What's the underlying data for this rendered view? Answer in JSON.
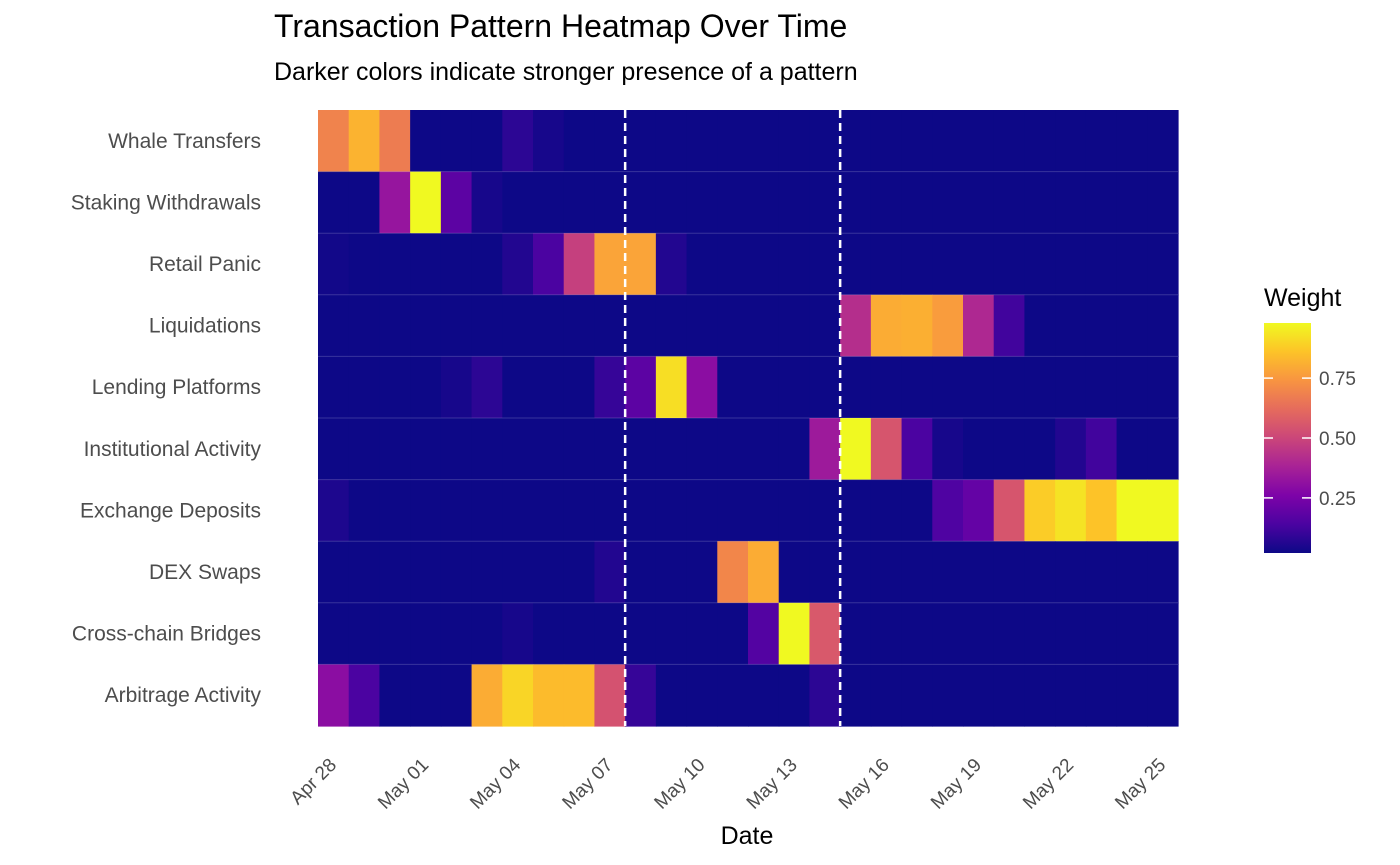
{
  "chart_data": {
    "type": "heatmap",
    "title": "Transaction Pattern Heatmap Over Time",
    "subtitle": "Darker colors indicate stronger presence of a pattern",
    "xlabel": "Date",
    "ylabel": "",
    "x_dates": [
      "2024-04-28",
      "2024-04-29",
      "2024-04-30",
      "2024-05-01",
      "2024-05-02",
      "2024-05-03",
      "2024-05-04",
      "2024-05-05",
      "2024-05-06",
      "2024-05-07",
      "2024-05-08",
      "2024-05-09",
      "2024-05-10",
      "2024-05-11",
      "2024-05-12",
      "2024-05-13",
      "2024-05-14",
      "2024-05-15",
      "2024-05-16",
      "2024-05-17",
      "2024-05-18",
      "2024-05-19",
      "2024-05-20",
      "2024-05-21",
      "2024-05-22",
      "2024-05-23",
      "2024-05-24",
      "2024-05-25"
    ],
    "x_ticks": [
      "Apr 28",
      "May 01",
      "May 04",
      "May 07",
      "May 10",
      "May 13",
      "May 16",
      "May 19",
      "May 22",
      "May 25"
    ],
    "categories": [
      "Whale Transfers",
      "Staking Withdrawals",
      "Retail Panic",
      "Liquidations",
      "Lending Platforms",
      "Institutional Activity",
      "Exchange Deposits",
      "DEX Swaps",
      "Cross-chain Bridges",
      "Arbitrage Activity"
    ],
    "values": [
      [
        0.69,
        0.82,
        0.67,
        0.02,
        0.02,
        0.02,
        0.08,
        0.04,
        0.02,
        0.02,
        0.02,
        0.02,
        0.02,
        0.02,
        0.02,
        0.02,
        0.02,
        0.02,
        0.02,
        0.02,
        0.02,
        0.02,
        0.02,
        0.02,
        0.02,
        0.02,
        0.02,
        0.02
      ],
      [
        0.02,
        0.02,
        0.33,
        0.98,
        0.18,
        0.04,
        0.02,
        0.02,
        0.02,
        0.02,
        0.02,
        0.02,
        0.02,
        0.02,
        0.02,
        0.02,
        0.02,
        0.02,
        0.02,
        0.02,
        0.02,
        0.02,
        0.02,
        0.02,
        0.02,
        0.02,
        0.02,
        0.02
      ],
      [
        0.03,
        0.02,
        0.02,
        0.02,
        0.02,
        0.02,
        0.06,
        0.14,
        0.48,
        0.78,
        0.78,
        0.06,
        0.02,
        0.02,
        0.02,
        0.02,
        0.02,
        0.02,
        0.02,
        0.02,
        0.02,
        0.02,
        0.02,
        0.02,
        0.02,
        0.02,
        0.02,
        0.02
      ],
      [
        0.02,
        0.02,
        0.02,
        0.02,
        0.02,
        0.02,
        0.02,
        0.02,
        0.02,
        0.02,
        0.02,
        0.02,
        0.02,
        0.02,
        0.02,
        0.02,
        0.02,
        0.42,
        0.8,
        0.81,
        0.76,
        0.4,
        0.12,
        0.02,
        0.02,
        0.02,
        0.02,
        0.02
      ],
      [
        0.02,
        0.02,
        0.02,
        0.02,
        0.04,
        0.08,
        0.02,
        0.02,
        0.02,
        0.1,
        0.18,
        0.92,
        0.3,
        0.02,
        0.02,
        0.02,
        0.02,
        0.02,
        0.02,
        0.02,
        0.02,
        0.02,
        0.02,
        0.02,
        0.02,
        0.02,
        0.02,
        0.02
      ],
      [
        0.02,
        0.02,
        0.02,
        0.02,
        0.02,
        0.02,
        0.02,
        0.02,
        0.02,
        0.02,
        0.02,
        0.02,
        0.02,
        0.02,
        0.02,
        0.02,
        0.35,
        0.98,
        0.55,
        0.14,
        0.04,
        0.02,
        0.02,
        0.02,
        0.06,
        0.12,
        0.02,
        0.02
      ],
      [
        0.05,
        0.02,
        0.02,
        0.02,
        0.02,
        0.02,
        0.02,
        0.02,
        0.02,
        0.02,
        0.02,
        0.02,
        0.02,
        0.02,
        0.02,
        0.02,
        0.02,
        0.02,
        0.02,
        0.02,
        0.15,
        0.2,
        0.55,
        0.88,
        0.93,
        0.86,
        0.98,
        0.98
      ],
      [
        0.02,
        0.02,
        0.02,
        0.02,
        0.02,
        0.02,
        0.02,
        0.02,
        0.02,
        0.06,
        0.02,
        0.02,
        0.02,
        0.7,
        0.8,
        0.02,
        0.02,
        0.02,
        0.02,
        0.02,
        0.02,
        0.02,
        0.02,
        0.02,
        0.02,
        0.02,
        0.02,
        0.02
      ],
      [
        0.02,
        0.02,
        0.02,
        0.02,
        0.02,
        0.02,
        0.04,
        0.02,
        0.02,
        0.02,
        0.02,
        0.02,
        0.02,
        0.02,
        0.16,
        0.98,
        0.56,
        0.02,
        0.02,
        0.02,
        0.02,
        0.02,
        0.02,
        0.02,
        0.02,
        0.02,
        0.02,
        0.02
      ],
      [
        0.3,
        0.14,
        0.02,
        0.02,
        0.02,
        0.8,
        0.9,
        0.84,
        0.84,
        0.54,
        0.1,
        0.02,
        0.02,
        0.02,
        0.02,
        0.02,
        0.08,
        0.02,
        0.02,
        0.02,
        0.02,
        0.02,
        0.02,
        0.02,
        0.02,
        0.02,
        0.02,
        0.02
      ]
    ],
    "vlines": [
      "2024-05-08",
      "2024-05-15"
    ],
    "vline_style": "dashed",
    "vline_color": "#ffffff",
    "color_scale": "plasma",
    "legend": {
      "title": "Weight",
      "position": "right",
      "range": [
        0.02,
        0.98
      ],
      "ticks": [
        0.25,
        0.5,
        0.75
      ],
      "tick_labels": [
        "0.25",
        "0.50",
        "0.75"
      ]
    },
    "grid": false
  }
}
